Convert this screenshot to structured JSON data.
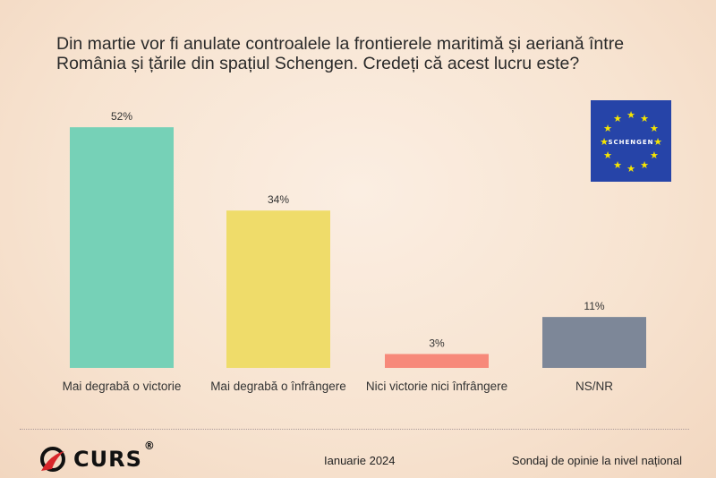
{
  "chart_data": {
    "type": "bar",
    "title": "Din martie vor fi anulate controalele la frontierele maritimă și aeriană între România și țările din spațiul Schengen. Credeți că acest lucru este?",
    "categories": [
      "Mai degrabă o victorie",
      "Mai degrabă o înfrângere",
      "Nici victorie nici înfrângere",
      "NS/NR"
    ],
    "values": [
      52,
      34,
      3,
      11
    ],
    "labels": [
      "52%",
      "34%",
      "3%",
      "11%"
    ],
    "colors": [
      "#76d1b7",
      "#efdc6a",
      "#f7897a",
      "#7d8798"
    ],
    "ylim": [
      0,
      55
    ],
    "xlabel": "",
    "ylabel": "",
    "grid": false
  },
  "flag": {
    "text": "SCHENGEN",
    "background": "#2644a8",
    "star_color": "#f7e600"
  },
  "footer": {
    "logo": "CURS",
    "registered": "®",
    "date": "Ianuarie 2024",
    "source": "Sondaj de opinie la nivel național"
  }
}
